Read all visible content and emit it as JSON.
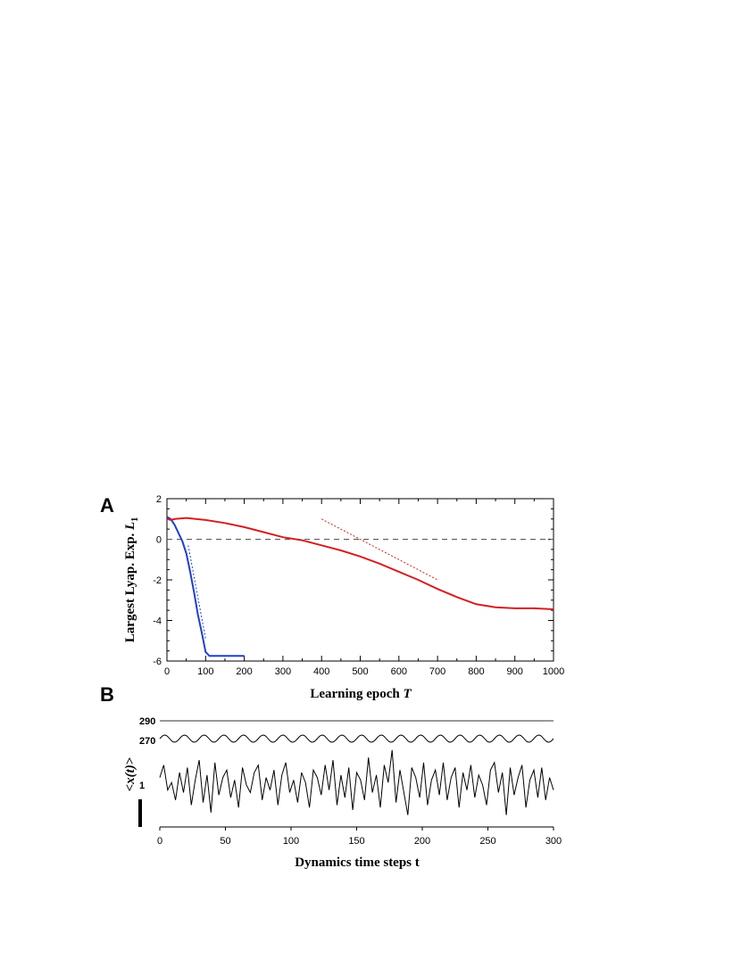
{
  "chart_data": [
    {
      "panel_label": "A",
      "type": "line",
      "xlabel": "Learning epoch",
      "xlabel_var": "T",
      "ylabel": "Largest Lyap. Exp.",
      "ylabel_var": "L",
      "ylabel_sub": "1",
      "xlim": [
        0,
        1000
      ],
      "ylim": [
        -6,
        2
      ],
      "x_ticks": [
        0,
        100,
        200,
        300,
        400,
        500,
        600,
        700,
        800,
        900,
        1000
      ],
      "y_ticks": [
        2,
        0,
        -2,
        -4,
        -6
      ],
      "grid": false,
      "series": [
        {
          "color": "#1f3fd0",
          "style": "solid",
          "x": [
            0,
            10,
            20,
            30,
            40,
            50,
            60,
            70,
            80,
            90,
            100,
            110,
            130,
            150,
            170,
            190,
            200
          ],
          "y": [
            1.1,
            1.0,
            0.7,
            0.3,
            -0.1,
            -0.7,
            -1.6,
            -2.6,
            -3.7,
            -4.6,
            -5.55,
            -5.75,
            -5.75,
            -5.75,
            -5.75,
            -5.75,
            -5.75
          ]
        },
        {
          "color": "#d42020",
          "style": "solid",
          "x": [
            0,
            10,
            20,
            50,
            100,
            150,
            200,
            250,
            300,
            350,
            400,
            450,
            500,
            550,
            600,
            650,
            700,
            750,
            800,
            850,
            900,
            950,
            1000
          ],
          "y": [
            1.0,
            0.95,
            1.0,
            1.05,
            0.95,
            0.8,
            0.6,
            0.35,
            0.1,
            -0.05,
            -0.3,
            -0.55,
            -0.85,
            -1.2,
            -1.6,
            -2.0,
            -2.45,
            -2.85,
            -3.2,
            -3.35,
            -3.4,
            -3.4,
            -3.45
          ]
        },
        {
          "color": "#1f3fd0",
          "style": "dotted",
          "x": [
            55,
            100
          ],
          "y": [
            -0.3,
            -4.9
          ]
        },
        {
          "color": "#d42020",
          "style": "dotted",
          "x": [
            400,
            700
          ],
          "y": [
            1.0,
            -2.0
          ]
        }
      ],
      "reference_line": {
        "y": 0,
        "style": "dashed",
        "color": "#555555"
      }
    },
    {
      "panel_label": "B",
      "type": "line",
      "xlabel": "Dynamics time steps t",
      "ylabel_prefix": "<",
      "ylabel_var": "x(t)",
      "ylabel_suffix": ">",
      "xlim": [
        0,
        300
      ],
      "x_ticks": [
        0,
        50,
        100,
        150,
        200,
        250,
        300
      ],
      "trace_labels": [
        "290",
        "270",
        "1"
      ],
      "grid": false,
      "series": [
        {
          "label": "290",
          "kind": "flat",
          "color": "#333333",
          "offset": 0.0,
          "amp": 0
        },
        {
          "label": "270",
          "kind": "periodic",
          "color": "#000000",
          "period": 15,
          "offset": 0.0,
          "amp": 0.5
        },
        {
          "label": "1",
          "kind": "chaotic",
          "color": "#000000",
          "x": [
            0,
            3,
            6,
            9,
            12,
            15,
            18,
            21,
            24,
            27,
            30,
            33,
            36,
            39,
            42,
            45,
            48,
            51,
            54,
            57,
            60,
            63,
            66,
            69,
            72,
            75,
            78,
            81,
            84,
            87,
            90,
            93,
            96,
            99,
            102,
            105,
            108,
            111,
            114,
            117,
            120,
            123,
            126,
            129,
            132,
            135,
            138,
            141,
            144,
            147,
            150,
            153,
            156,
            159,
            162,
            165,
            168,
            171,
            174,
            177,
            180,
            183,
            186,
            189,
            192,
            195,
            198,
            201,
            204,
            207,
            210,
            213,
            216,
            219,
            222,
            225,
            228,
            231,
            234,
            237,
            240,
            243,
            246,
            249,
            252,
            255,
            258,
            261,
            264,
            267,
            270,
            273,
            276,
            279,
            282,
            285,
            288,
            291,
            294,
            297,
            300
          ],
          "values": [
            0.3,
            0.8,
            -0.2,
            0.1,
            -0.6,
            0.5,
            -0.3,
            0.7,
            -0.8,
            0.2,
            1.0,
            -0.7,
            0.4,
            -1.1,
            0.9,
            -0.4,
            0.3,
            0.6,
            -0.5,
            0.2,
            -0.9,
            0.7,
            0.0,
            -0.3,
            0.5,
            0.8,
            -0.6,
            0.3,
            -0.2,
            0.6,
            -0.8,
            0.4,
            0.9,
            -0.3,
            0.2,
            -0.7,
            0.5,
            0.1,
            -0.9,
            0.6,
            0.3,
            -0.4,
            0.8,
            -0.2,
            1.0,
            -0.8,
            0.4,
            -0.5,
            0.7,
            -1.0,
            0.5,
            0.2,
            -0.6,
            1.1,
            -0.3,
            0.4,
            -0.9,
            0.8,
            0.1,
            1.4,
            -0.7,
            0.6,
            -0.3,
            -1.2,
            0.7,
            0.3,
            -0.5,
            0.9,
            -0.8,
            0.2,
            0.6,
            -0.4,
            0.9,
            -0.6,
            0.3,
            0.7,
            -0.9,
            0.5,
            -0.2,
            0.8,
            -0.5,
            0.4,
            0.0,
            -0.8,
            0.6,
            0.9,
            -0.3,
            0.5,
            -1.2,
            0.7,
            -0.4,
            0.3,
            0.8,
            -0.9,
            0.2,
            0.6,
            -0.5,
            0.7,
            -0.6,
            0.3,
            -0.2
          ]
        }
      ]
    }
  ]
}
